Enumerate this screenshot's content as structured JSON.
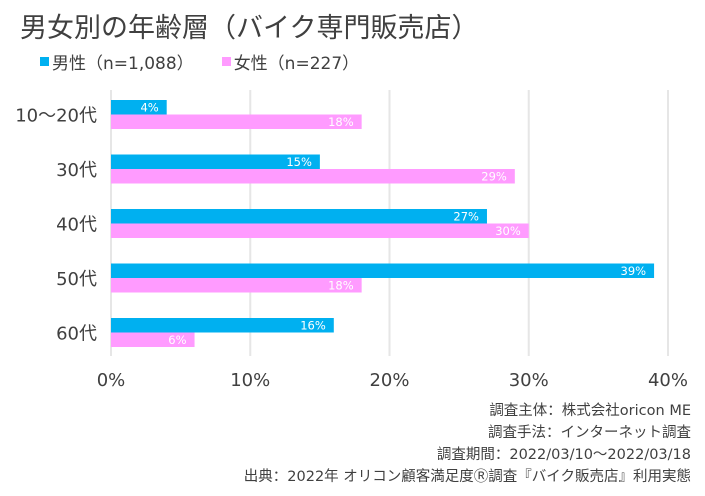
{
  "chart_data": {
    "type": "bar",
    "orientation": "horizontal",
    "title": "男女別の年齢層（バイク専門販売店）",
    "categories": [
      "10～20代",
      "30代",
      "40代",
      "50代",
      "60代"
    ],
    "series": [
      {
        "name": "男性（n=1,088）",
        "values": [
          4,
          15,
          27,
          39,
          16
        ],
        "color": "#00B0F0"
      },
      {
        "name": "女性（n=227）",
        "values": [
          18,
          29,
          30,
          18,
          6
        ],
        "color": "#FF9BFF"
      }
    ],
    "xlim": [
      0,
      40
    ],
    "xticks": [
      0,
      10,
      20,
      30,
      40
    ],
    "tick_suffix": "%",
    "value_suffix": "%",
    "grid": true,
    "legend_position": "top-left",
    "xlabel": "",
    "ylabel": ""
  },
  "colors": {
    "male": "#00B0F0",
    "female": "#FF9BFF",
    "grid": "#E6E6E6",
    "text": "#404040",
    "label_on_bar": "#FFFFFF"
  },
  "notes": [
    "調査主体：株式会社oricon ME",
    "調査手法：インターネット調査",
    "調査期間：2022/03/10～2022/03/18",
    "出典：2022年 オリコン顧客満足度Ⓡ調査『バイク販売店』利用実態"
  ]
}
